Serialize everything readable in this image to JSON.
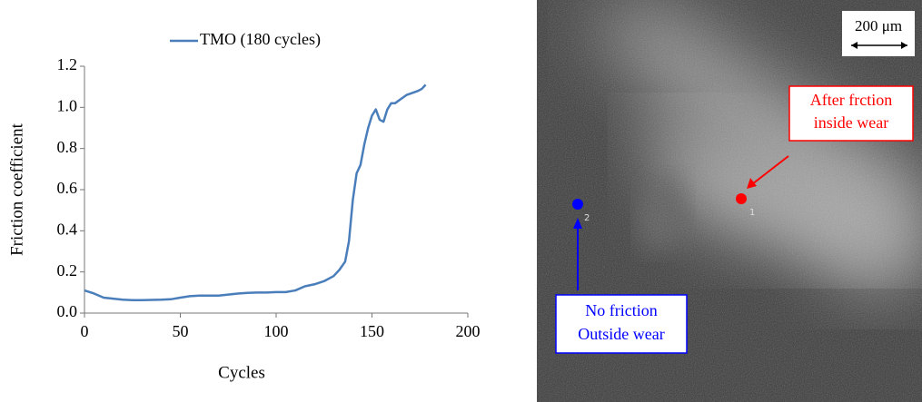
{
  "chart_data": {
    "type": "line",
    "xlabel": "Cycles",
    "ylabel": "Friction coefficient",
    "x": [
      0,
      5,
      10,
      15,
      20,
      25,
      30,
      35,
      40,
      45,
      50,
      55,
      60,
      65,
      70,
      75,
      80,
      85,
      90,
      95,
      100,
      105,
      110,
      115,
      120,
      125,
      130,
      133,
      136,
      138,
      140,
      142,
      144,
      146,
      148,
      150,
      152,
      154,
      156,
      158,
      160,
      162,
      165,
      168,
      171,
      174,
      176,
      178
    ],
    "series": [
      {
        "name": "TMO (180 cycles)",
        "color": "#4a7ebb",
        "values": [
          0.11,
          0.095,
          0.075,
          0.07,
          0.065,
          0.063,
          0.063,
          0.064,
          0.065,
          0.067,
          0.075,
          0.082,
          0.085,
          0.085,
          0.085,
          0.09,
          0.095,
          0.098,
          0.1,
          0.1,
          0.102,
          0.102,
          0.11,
          0.13,
          0.14,
          0.155,
          0.18,
          0.21,
          0.25,
          0.35,
          0.55,
          0.68,
          0.72,
          0.82,
          0.9,
          0.96,
          0.99,
          0.94,
          0.93,
          0.99,
          1.02,
          1.02,
          1.04,
          1.06,
          1.07,
          1.08,
          1.09,
          1.11
        ]
      }
    ],
    "xlim": [
      0,
      200
    ],
    "xticks": [
      0,
      50,
      100,
      150,
      200
    ],
    "ylim": [
      0,
      1.2
    ],
    "yticks": [
      {
        "value": 0,
        "label": "0.0"
      },
      0.2,
      0.4,
      0.6,
      0.8,
      {
        "value": 1,
        "label": "1.0"
      },
      1.2
    ],
    "legend": "top"
  },
  "micrograph": {
    "scale_bar": "200 μm",
    "annotations": [
      {
        "lines": [
          "After frction",
          "inside wear"
        ],
        "color": "#ff0000",
        "point_label": "1"
      },
      {
        "lines": [
          "No friction",
          "Outside wear"
        ],
        "color": "#0000ff",
        "point_label": "2"
      }
    ]
  }
}
